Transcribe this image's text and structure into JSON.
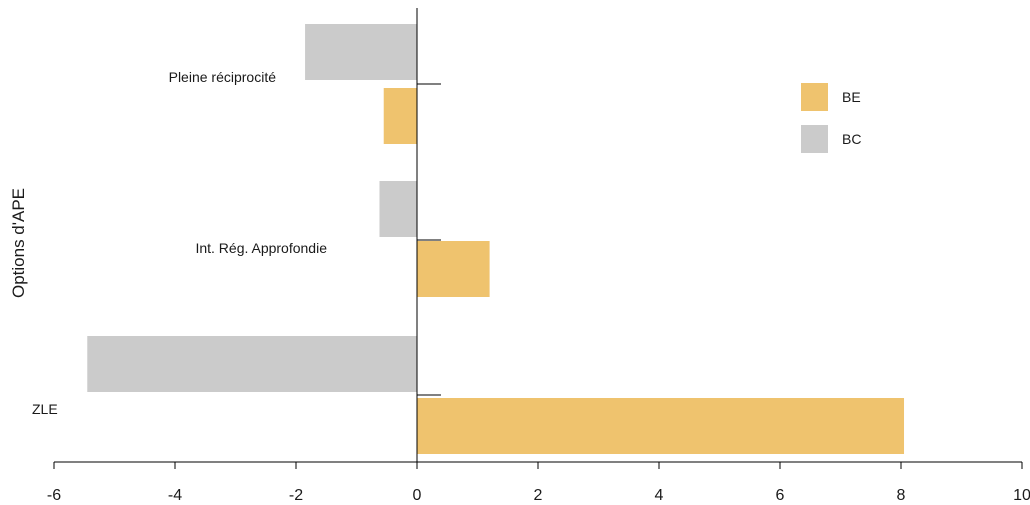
{
  "chart_data": {
    "type": "bar",
    "orientation": "horizontal",
    "categories": [
      "Pleine réciprocité",
      "Int. Rég. Approfondie",
      "ZLE"
    ],
    "series": [
      {
        "name": "BC",
        "color": "#cbcbcb",
        "values": [
          -1.85,
          -0.62,
          -5.45
        ]
      },
      {
        "name": "BE",
        "color": "#efc36e",
        "values": [
          -0.55,
          1.2,
          8.05
        ]
      }
    ],
    "xlabel": "",
    "ylabel": "Options d'APE",
    "xlim": [
      -6,
      10
    ],
    "xticks": [
      "-6",
      "-4",
      "-2",
      "0",
      "2",
      "4",
      "6",
      "8",
      "10"
    ],
    "legend": {
      "position": "top-right"
    },
    "grid": false
  }
}
